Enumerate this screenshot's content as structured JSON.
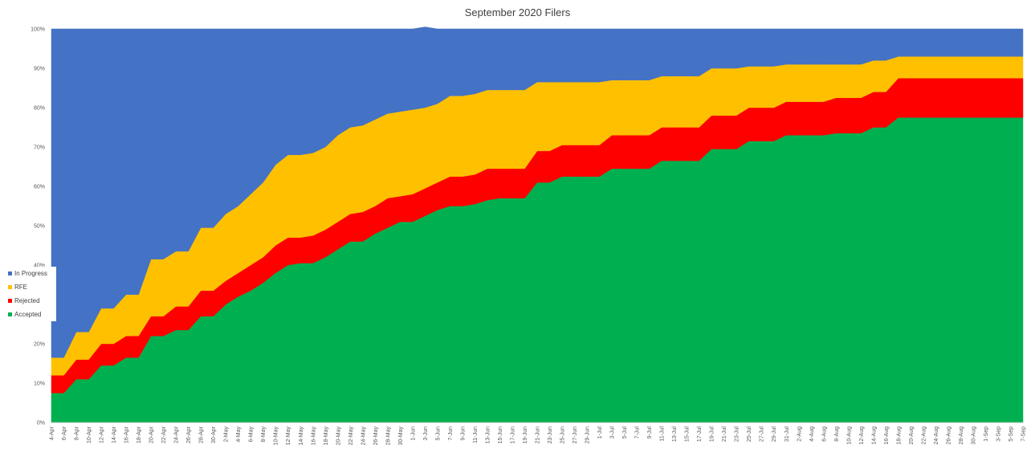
{
  "chart_data": {
    "type": "area",
    "title": "September 2020 Filers",
    "xlabel": "",
    "ylabel": "",
    "ylim": [
      0,
      100
    ],
    "y_ticks": [
      "0%",
      "10%",
      "20%",
      "30%",
      "40%",
      "50%",
      "60%",
      "70%",
      "80%",
      "90%",
      "100%"
    ],
    "x_tick_labels": [
      "4-Apr",
      "6-Apr",
      "8-Apr",
      "10-Apr",
      "12-Apr",
      "14-Apr",
      "16-Apr",
      "18-Apr",
      "20-Apr",
      "22-Apr",
      "24-Apr",
      "26-Apr",
      "28-Apr",
      "30-Apr",
      "2-May",
      "4-May",
      "6-May",
      "8-May",
      "10-May",
      "12-May",
      "14-May",
      "16-May",
      "18-May",
      "20-May",
      "22-May",
      "24-May",
      "26-May",
      "28-May",
      "30-May",
      "1-Jun",
      "3-Jun",
      "5-Jun",
      "7-Jun",
      "9-Jun",
      "11-Jun",
      "13-Jun",
      "15-Jun",
      "17-Jun",
      "19-Jun",
      "21-Jun",
      "23-Jun",
      "25-Jun",
      "27-Jun",
      "29-Jun",
      "1-Jul",
      "3-Jul",
      "5-Jul",
      "7-Jul",
      "9-Jul",
      "11-Jul",
      "13-Jul",
      "15-Jul",
      "17-Jul",
      "19-Jul",
      "21-Jul",
      "23-Jul",
      "25-Jul",
      "27-Jul",
      "29-Jul",
      "31-Jul",
      "2-Aug",
      "4-Aug",
      "6-Aug",
      "8-Aug",
      "10-Aug",
      "12-Aug",
      "14-Aug",
      "16-Aug",
      "18-Aug",
      "20-Aug",
      "22-Aug",
      "24-Aug",
      "26-Aug",
      "28-Aug",
      "30-Aug",
      "1-Sep",
      "3-Sep",
      "5-Sep",
      "7-Sep"
    ],
    "legend": {
      "placement": "left",
      "items": [
        {
          "name": "In Progress",
          "color": "#4472C4"
        },
        {
          "name": "RFE",
          "color": "#FFC000"
        },
        {
          "name": "Rejected",
          "color": "#FF0000"
        },
        {
          "name": "Accepted",
          "color": "#00B050"
        }
      ]
    },
    "series": [
      {
        "name": "Accepted",
        "color": "#00B050",
        "values": [
          7.5,
          7.5,
          11,
          11,
          14.5,
          14.5,
          16.5,
          16.5,
          22,
          22,
          23.5,
          23.5,
          27,
          27,
          30,
          32,
          33.5,
          35.5,
          38,
          40,
          40.5,
          40.5,
          42,
          44,
          46,
          46,
          48,
          49.5,
          51,
          51,
          52.5,
          54,
          55,
          55,
          55.5,
          56.5,
          57,
          57,
          57,
          61,
          61,
          62.5,
          62.5,
          62.5,
          62.5,
          64.5,
          64.5,
          64.5,
          64.5,
          66.5,
          66.5,
          66.5,
          66.5,
          69.5,
          69.5,
          69.5,
          71.5,
          71.5,
          71.5,
          73,
          73,
          73,
          73,
          73.5,
          73.5,
          73.5,
          75,
          75,
          77.5,
          77.5,
          77.5,
          77.5,
          77.5,
          77.5,
          77.5,
          77.5,
          77.5,
          77.5,
          77.5,
          0
        ]
      },
      {
        "name": "Rejected",
        "color": "#FF0000",
        "values": [
          4.5,
          4.5,
          5,
          5,
          5.5,
          5.5,
          5.5,
          5.5,
          5,
          5,
          6,
          6,
          6.5,
          6.5,
          6,
          6,
          6.5,
          6.5,
          7,
          7,
          6.5,
          7,
          7,
          7,
          7,
          7.5,
          7,
          7.5,
          6.5,
          7,
          7,
          7,
          7.5,
          7.5,
          7.5,
          8,
          7.5,
          7.5,
          7.5,
          8,
          8,
          8,
          8,
          8,
          8,
          8.5,
          8.5,
          8.5,
          8.5,
          8.5,
          8.5,
          8.5,
          8.5,
          8.5,
          8.5,
          8.5,
          8.5,
          8.5,
          8.5,
          8.5,
          8.5,
          8.5,
          8.5,
          9,
          9,
          9,
          9,
          9,
          10,
          10,
          10,
          10,
          10,
          10,
          10,
          10,
          10,
          10,
          10,
          0
        ]
      },
      {
        "name": "RFE",
        "color": "#FFC000",
        "values": [
          4.5,
          4.5,
          7,
          7,
          9,
          9,
          10.5,
          10.5,
          14.5,
          14.5,
          14,
          14,
          16,
          16,
          17,
          17,
          18,
          19,
          20.5,
          21,
          21,
          21,
          21,
          22,
          22,
          22,
          22,
          21.5,
          21.5,
          21.5,
          20.5,
          20,
          20.5,
          20.5,
          20.5,
          20,
          20,
          20,
          20,
          17.5,
          17.5,
          16,
          16,
          16,
          16,
          14,
          14,
          14,
          14,
          13,
          13,
          13,
          13,
          12,
          12,
          12,
          10.5,
          10.5,
          10.5,
          9.5,
          9.5,
          9.5,
          9.5,
          8.5,
          8.5,
          8.5,
          8,
          8,
          5.5,
          5.5,
          5.5,
          5.5,
          5.5,
          5.5,
          5.5,
          5.5,
          5.5,
          5.5,
          5.5,
          0
        ]
      },
      {
        "name": "In Progress",
        "color": "#4472C4",
        "values": [
          83.5,
          83.5,
          77,
          77,
          71,
          71,
          67.5,
          67.5,
          58.5,
          58.5,
          56.5,
          56.5,
          50.5,
          50.5,
          47,
          45,
          42,
          39,
          34.5,
          32,
          32,
          31.5,
          30,
          27,
          25,
          24.5,
          23,
          21.5,
          21,
          20.5,
          20.5,
          19,
          17,
          17,
          16.5,
          15.5,
          15.5,
          15.5,
          15.5,
          13.5,
          13.5,
          13.5,
          13.5,
          13.5,
          13.5,
          13,
          13,
          13,
          13,
          12,
          12,
          12,
          12,
          10,
          10,
          10,
          9.5,
          9.5,
          9.5,
          9,
          9,
          9,
          9,
          9,
          9,
          9,
          8,
          8,
          7,
          7,
          7,
          7,
          7,
          7,
          7,
          7,
          7,
          7,
          7,
          100
        ]
      }
    ]
  }
}
